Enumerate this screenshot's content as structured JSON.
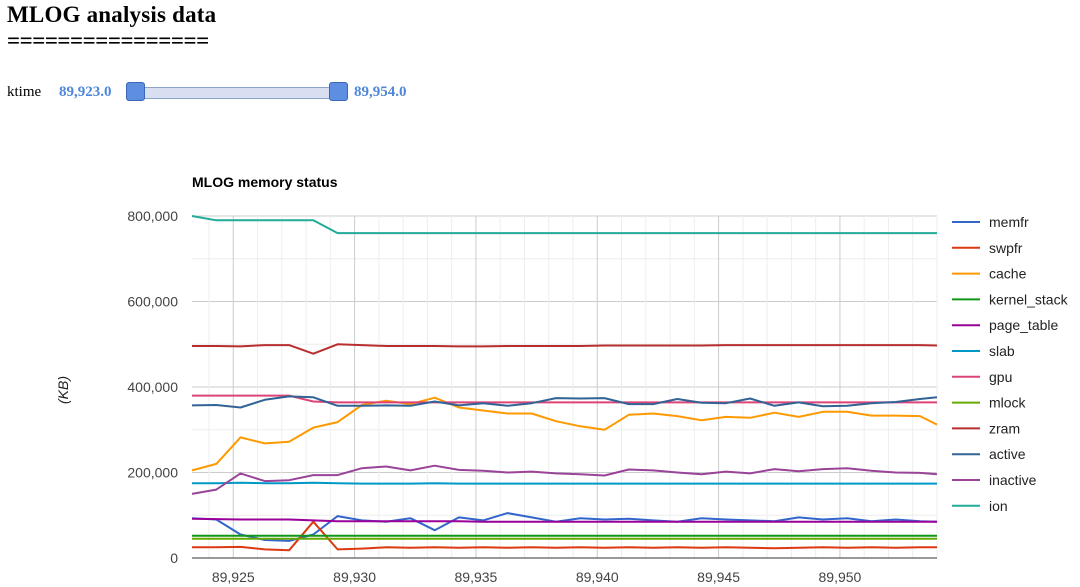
{
  "page": {
    "title": "MLOG analysis data",
    "underline": "================"
  },
  "slider": {
    "label": "ktime",
    "min_label": "89,923.0",
    "max_label": "89,954.0"
  },
  "colors": {
    "memfr": "#3366cc",
    "swpfr": "#dc3912",
    "cache": "#ff9900",
    "kernel_stack": "#109618",
    "page_table": "#990099",
    "slab": "#0099c6",
    "gpu": "#dd4477",
    "mlock": "#66aa00",
    "zram": "#b82e2e",
    "active": "#316395",
    "inactive": "#994499",
    "ion": "#22aa99"
  },
  "chart_data": {
    "type": "line",
    "title": "MLOG memory status",
    "xlabel": "",
    "ylabel": "(KB)",
    "xlim": [
      89923.3,
      89954.0
    ],
    "ylim": [
      0,
      800000
    ],
    "x_ticks": [
      "89,925",
      "89,930",
      "89,935",
      "89,940",
      "89,945",
      "89,950"
    ],
    "y_ticks": [
      "800,000",
      "600,000",
      "400,000",
      "200,000",
      "0"
    ],
    "grid": true,
    "legend_position": "right",
    "x": [
      89923.3,
      89924.3,
      89925.3,
      89926.3,
      89927.3,
      89928.3,
      89929.3,
      89930.3,
      89931.3,
      89932.3,
      89933.3,
      89934.3,
      89935.3,
      89936.3,
      89937.3,
      89938.3,
      89939.3,
      89940.3,
      89941.3,
      89942.3,
      89943.3,
      89944.3,
      89945.3,
      89946.3,
      89947.3,
      89948.3,
      89949.3,
      89950.3,
      89951.3,
      89952.3,
      89953.3,
      89954.0
    ],
    "series": [
      {
        "name": "memfr",
        "values": [
          93000,
          90000,
          55000,
          42000,
          40000,
          55000,
          98000,
          88000,
          85000,
          93000,
          65000,
          95000,
          88000,
          105000,
          95000,
          85000,
          93000,
          90000,
          92000,
          88000,
          85000,
          93000,
          90000,
          88000,
          86000,
          95000,
          90000,
          93000,
          86000,
          90000,
          86000,
          85000
        ]
      },
      {
        "name": "swpfr",
        "values": [
          25000,
          25000,
          26000,
          20000,
          18000,
          85000,
          20000,
          22000,
          25000,
          24000,
          25000,
          24000,
          25000,
          24000,
          25000,
          24000,
          25000,
          24000,
          25000,
          24000,
          25000,
          24000,
          25000,
          24000,
          23000,
          24000,
          25000,
          24000,
          25000,
          24000,
          25000,
          25000
        ]
      },
      {
        "name": "cache",
        "values": [
          205000,
          220000,
          282000,
          268000,
          272000,
          305000,
          318000,
          358000,
          368000,
          360000,
          375000,
          352000,
          345000,
          338000,
          338000,
          320000,
          308000,
          300000,
          335000,
          338000,
          332000,
          322000,
          330000,
          328000,
          340000,
          330000,
          342000,
          342000,
          333000,
          333000,
          332000,
          312000
        ]
      },
      {
        "name": "kernel_stack",
        "values": [
          52000,
          52000,
          52000,
          52000,
          52000,
          52000,
          52000,
          52000,
          52000,
          52000,
          52000,
          52000,
          52000,
          52000,
          52000,
          52000,
          52000,
          52000,
          52000,
          52000,
          52000,
          52000,
          52000,
          52000,
          52000,
          52000,
          52000,
          52000,
          52000,
          52000,
          52000,
          52000
        ]
      },
      {
        "name": "page_table",
        "values": [
          92000,
          91000,
          90000,
          90000,
          90000,
          88000,
          86000,
          86000,
          86000,
          86000,
          86000,
          86000,
          85000,
          85000,
          85000,
          85000,
          85000,
          85000,
          85000,
          85000,
          85000,
          85000,
          85000,
          85000,
          85000,
          85000,
          85000,
          85000,
          85000,
          85000,
          85000,
          85000
        ]
      },
      {
        "name": "slab",
        "values": [
          175000,
          175000,
          176000,
          175000,
          175000,
          176000,
          175000,
          174000,
          174000,
          174000,
          175000,
          174000,
          174000,
          174000,
          174000,
          174000,
          174000,
          174000,
          174000,
          174000,
          174000,
          174000,
          174000,
          174000,
          174000,
          174000,
          174000,
          174000,
          174000,
          174000,
          174000,
          174000
        ]
      },
      {
        "name": "gpu",
        "values": [
          380000,
          380000,
          380000,
          380000,
          380000,
          366000,
          364000,
          364000,
          364000,
          364000,
          364000,
          364000,
          364000,
          364000,
          364000,
          364000,
          364000,
          364000,
          364000,
          364000,
          364000,
          364000,
          364000,
          364000,
          364000,
          364000,
          364000,
          364000,
          364000,
          364000,
          364000,
          364000
        ]
      },
      {
        "name": "mlock",
        "values": [
          45000,
          45000,
          45000,
          45000,
          45000,
          45000,
          45000,
          45000,
          45000,
          45000,
          45000,
          45000,
          45000,
          45000,
          45000,
          45000,
          45000,
          45000,
          45000,
          45000,
          45000,
          45000,
          45000,
          45000,
          45000,
          45000,
          45000,
          45000,
          45000,
          45000,
          45000,
          45000
        ]
      },
      {
        "name": "zram",
        "values": [
          496000,
          496000,
          495000,
          498000,
          498000,
          478000,
          500000,
          498000,
          496000,
          496000,
          496000,
          495000,
          495000,
          496000,
          496000,
          496000,
          496000,
          497000,
          497000,
          497000,
          497000,
          497000,
          498000,
          498000,
          498000,
          498000,
          498000,
          498000,
          498000,
          498000,
          498000,
          497000
        ]
      },
      {
        "name": "active",
        "values": [
          357000,
          358000,
          352000,
          370000,
          378000,
          376000,
          356000,
          356000,
          357000,
          356000,
          366000,
          357000,
          362000,
          356000,
          362000,
          374000,
          373000,
          374000,
          360000,
          360000,
          372000,
          363000,
          362000,
          373000,
          356000,
          364000,
          355000,
          356000,
          362000,
          365000,
          372000,
          376000
        ]
      },
      {
        "name": "inactive",
        "values": [
          150000,
          160000,
          198000,
          180000,
          182000,
          194000,
          194000,
          210000,
          214000,
          205000,
          216000,
          206000,
          204000,
          200000,
          202000,
          198000,
          196000,
          193000,
          207000,
          205000,
          200000,
          196000,
          202000,
          198000,
          208000,
          203000,
          208000,
          210000,
          204000,
          200000,
          199000,
          196000
        ]
      },
      {
        "name": "ion",
        "values": [
          800000,
          790000,
          790000,
          790000,
          790000,
          790000,
          760000,
          760000,
          760000,
          760000,
          760000,
          760000,
          760000,
          760000,
          760000,
          760000,
          760000,
          760000,
          760000,
          760000,
          760000,
          760000,
          760000,
          760000,
          760000,
          760000,
          760000,
          760000,
          760000,
          760000,
          760000,
          760000
        ]
      }
    ]
  }
}
